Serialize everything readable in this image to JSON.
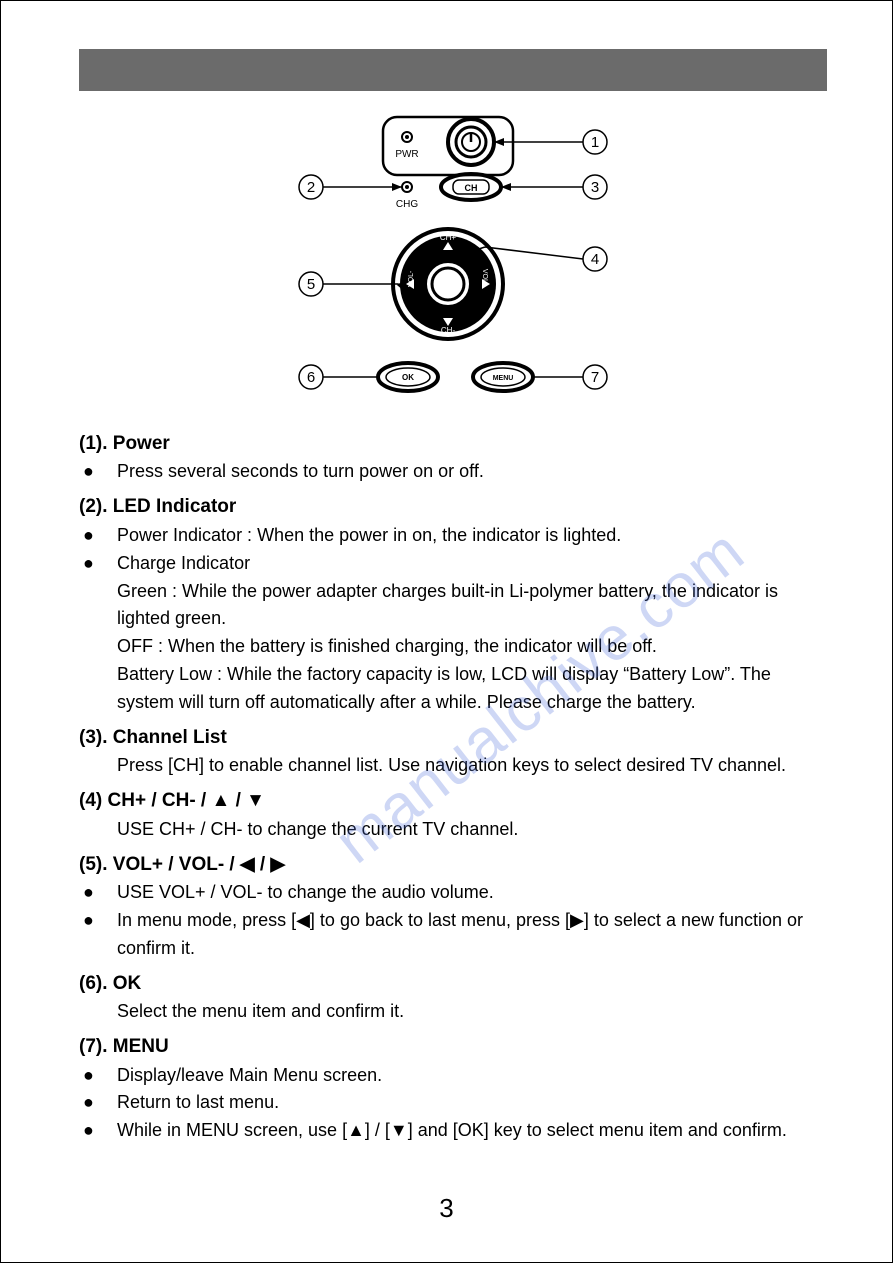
{
  "page_number": "3",
  "watermark": "manualchive.com",
  "header_bar_color": "#6b6b6b",
  "diagram": {
    "labels": {
      "pwr": "PWR",
      "chg": "CHG",
      "ch": "CH",
      "ch_plus": "CH+",
      "ch_minus": "CH-",
      "vol_plus": "VOL+",
      "vol_minus": "VOL-",
      "ok": "OK",
      "menu": "MENU"
    },
    "callouts": [
      "1",
      "2",
      "3",
      "4",
      "5",
      "6",
      "7"
    ],
    "stroke": "#000000",
    "fill_dark": "#000000",
    "background": "#ffffff"
  },
  "sections": [
    {
      "heading": "(1). Power",
      "items": [
        {
          "bullet": true,
          "text": "Press several seconds to turn power on or off."
        }
      ]
    },
    {
      "heading": "(2). LED Indicator",
      "items": [
        {
          "bullet": true,
          "text": "Power Indicator : When the power in on, the indicator is lighted."
        },
        {
          "bullet": true,
          "text": "Charge Indicator"
        },
        {
          "bullet": false,
          "text": "Green : While the power adapter charges built-in Li-polymer battery, the indicator is lighted green."
        },
        {
          "bullet": false,
          "text": "OFF : When the battery is finished charging, the indicator will be off."
        },
        {
          "bullet": false,
          "text": "Battery Low : While the factory capacity is low, LCD will display “Battery Low”. The system will turn off automatically after a while. Please charge the battery."
        }
      ]
    },
    {
      "heading": "(3). Channel List",
      "items": [
        {
          "bullet": false,
          "text": "Press [CH] to enable channel list. Use navigation keys to select desired TV channel."
        }
      ]
    },
    {
      "heading": "(4)  CH+ / CH- / ▲ / ▼",
      "items": [
        {
          "bullet": false,
          "text": "USE CH+ / CH- to change the current TV channel."
        }
      ]
    },
    {
      "heading": "(5). VOL+ / VOL- / ◀ / ▶",
      "items": [
        {
          "bullet": true,
          "text": "USE VOL+ / VOL- to change the audio volume."
        },
        {
          "bullet": true,
          "text": "In menu mode, press [◀] to go back to last menu, press [▶] to select a new function or confirm it."
        }
      ]
    },
    {
      "heading": "(6). OK",
      "items": [
        {
          "bullet": false,
          "text": "Select the menu item and confirm it."
        }
      ]
    },
    {
      "heading": "(7). MENU",
      "items": [
        {
          "bullet": true,
          "text": "Display/leave Main Menu screen."
        },
        {
          "bullet": true,
          "text": "Return to last menu."
        },
        {
          "bullet": true,
          "text": "While in MENU screen, use [▲] / [▼] and [OK] key to select menu item and confirm."
        }
      ]
    }
  ]
}
